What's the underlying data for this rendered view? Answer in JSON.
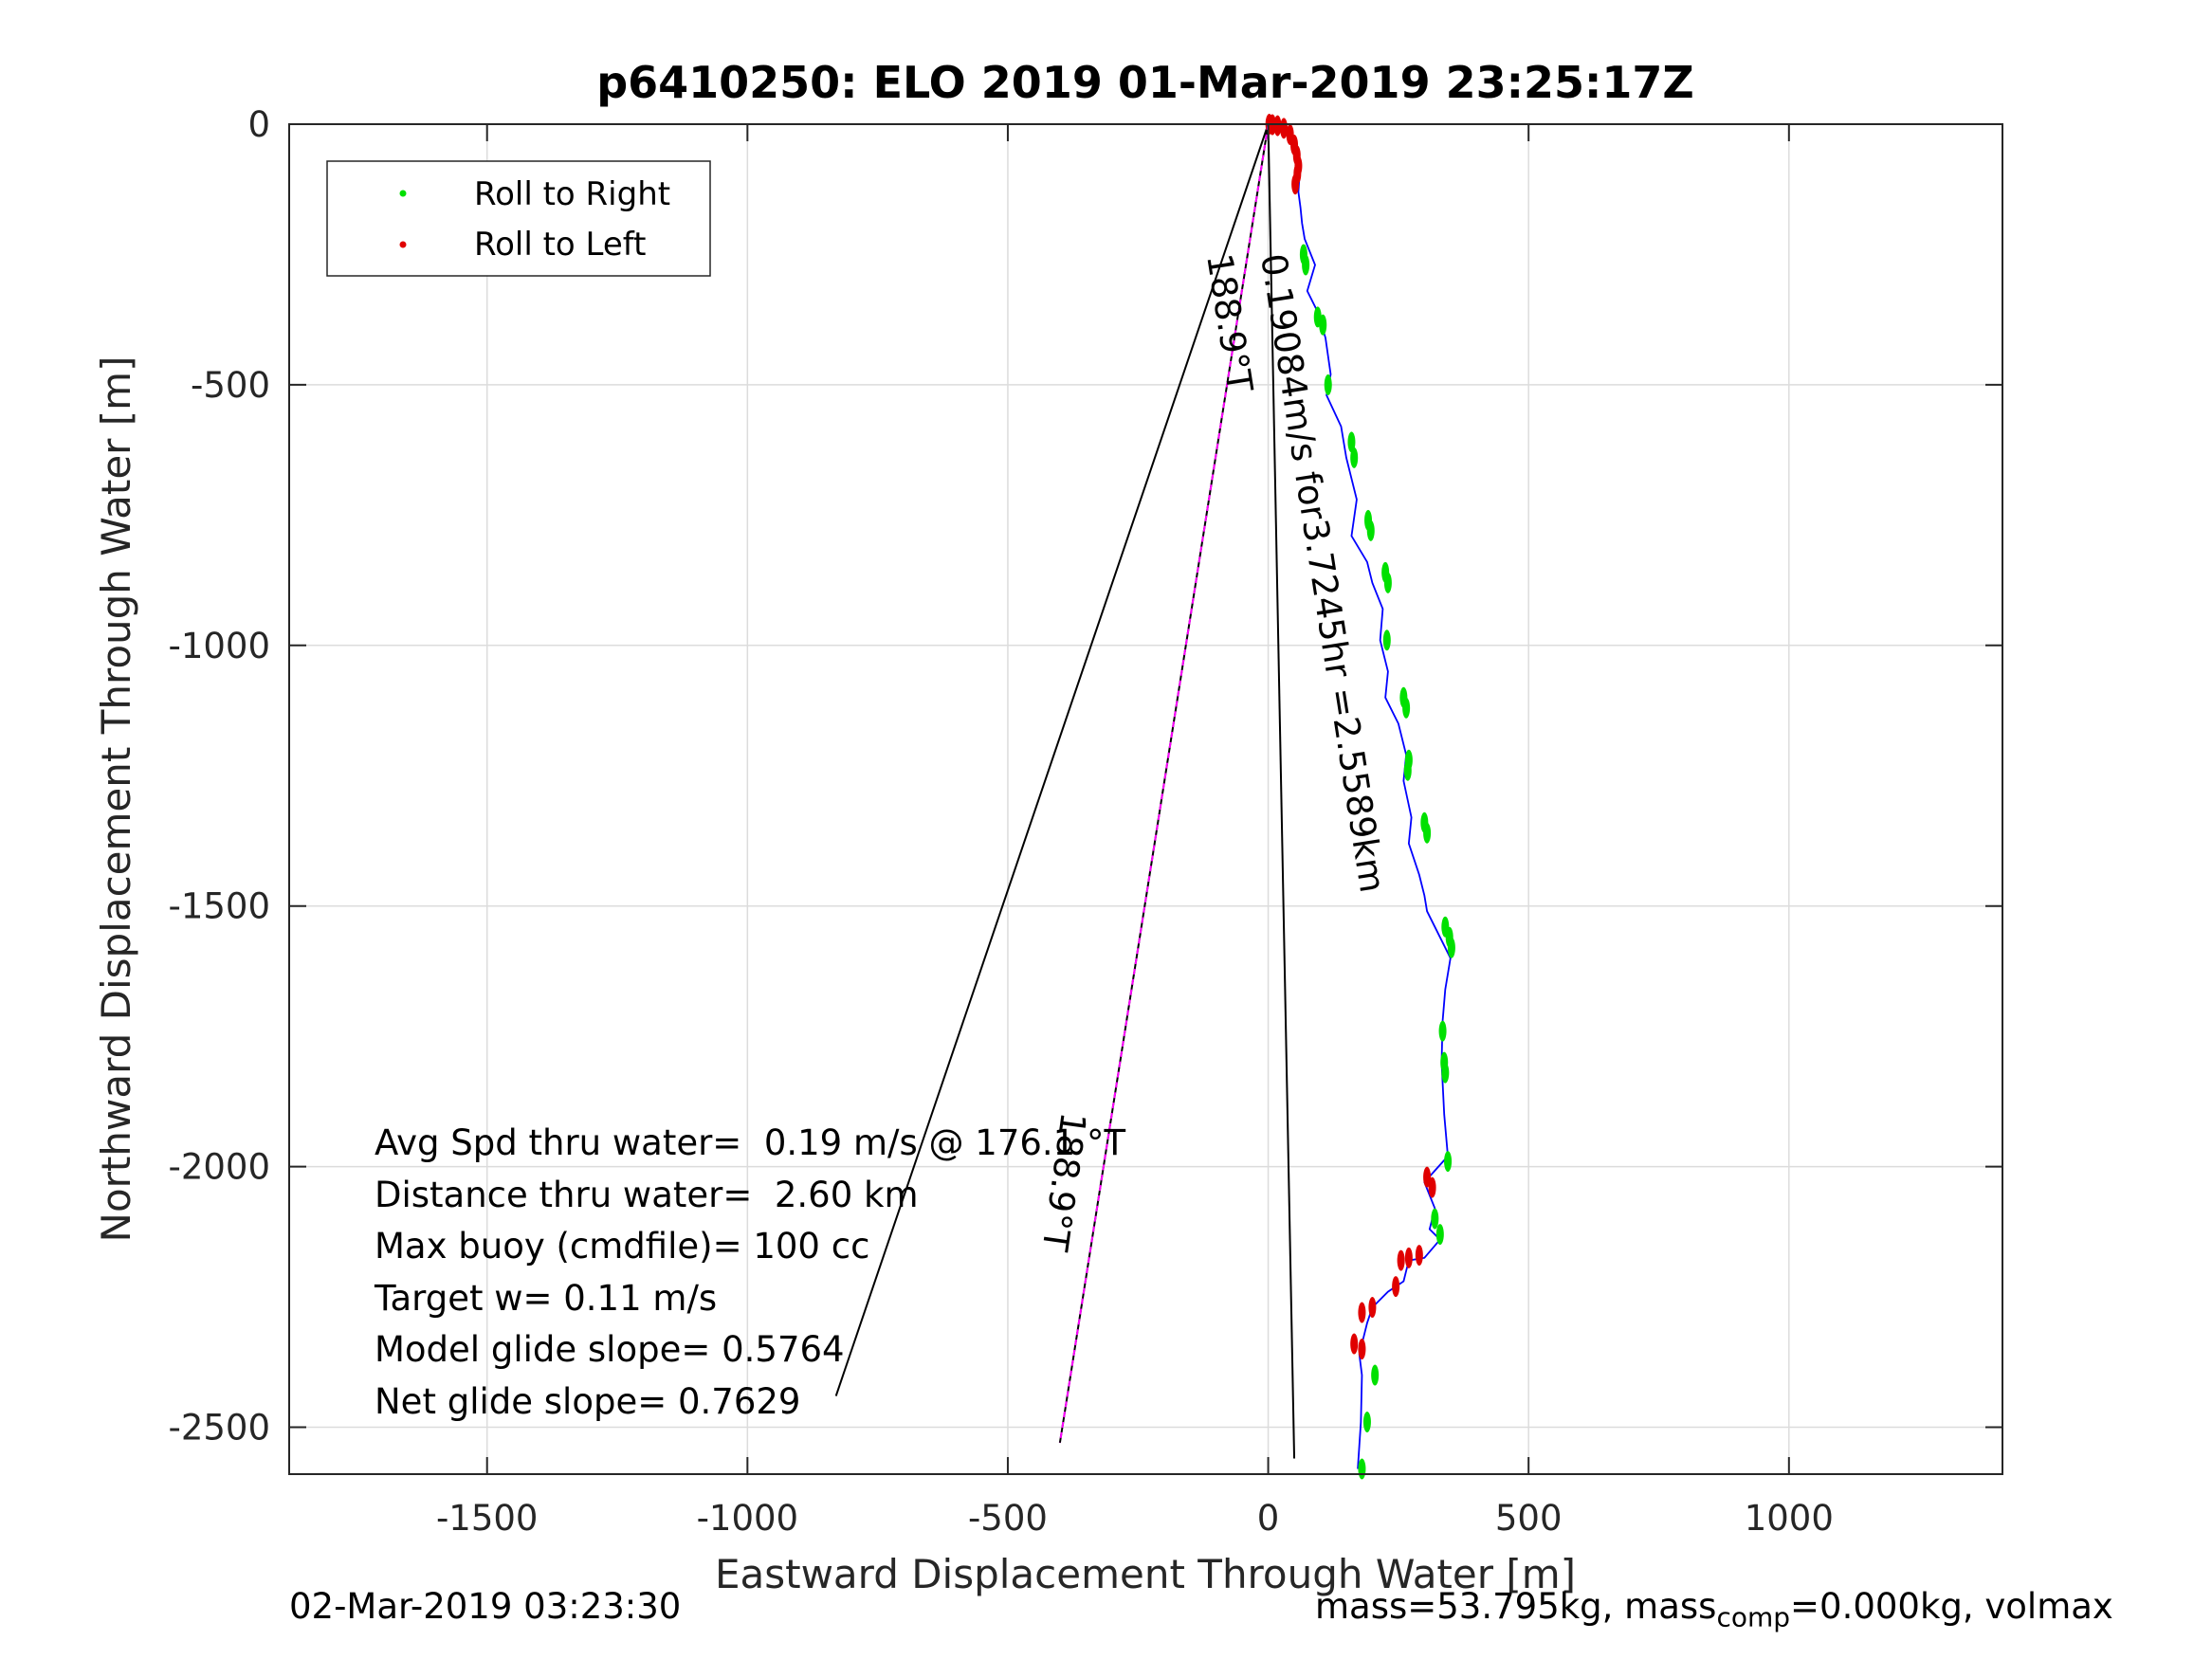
{
  "chart_data": {
    "type": "scatter",
    "title": "p6410250: ELO 2019 01-Mar-2019 23:25:17Z",
    "xlabel": "Eastward Displacement Through Water [m]",
    "ylabel": "Northward Displacement Through Water [m]",
    "xlim": [
      -1880,
      1410
    ],
    "ylim": [
      -2590,
      0
    ],
    "xticks": [
      -1500,
      -1000,
      -500,
      0,
      500,
      1000
    ],
    "yticks": [
      0,
      -500,
      -1000,
      -1500,
      -2000,
      -2500
    ],
    "grid": true,
    "legend": {
      "placement": "top-left",
      "entries": [
        {
          "name": "Roll to Right",
          "color": "#00e000"
        },
        {
          "name": "Roll to Left",
          "color": "#e00000"
        }
      ]
    },
    "series": [
      {
        "style": "track-line",
        "color": "#0000ff",
        "x": [
          5,
          15,
          30,
          45,
          55,
          60,
          58,
          62,
          65,
          70,
          90,
          75,
          95,
          110,
          120,
          112,
          140,
          150,
          170,
          160,
          190,
          200,
          220,
          215,
          230,
          225,
          250,
          265,
          260,
          275,
          270,
          290,
          300,
          305,
          330,
          350,
          340,
          335,
          333,
          338,
          345,
          300,
          320,
          310,
          330,
          300,
          270,
          260,
          230,
          200,
          190,
          175,
          180,
          178,
          172
        ],
        "y": [
          0,
          -2,
          -10,
          -30,
          -60,
          -100,
          -130,
          -160,
          -190,
          -220,
          -270,
          -320,
          -360,
          -410,
          -480,
          -520,
          -580,
          -640,
          -720,
          -790,
          -840,
          -880,
          -930,
          -990,
          -1050,
          -1100,
          -1150,
          -1210,
          -1260,
          -1330,
          -1380,
          -1440,
          -1480,
          -1510,
          -1560,
          -1600,
          -1660,
          -1720,
          -1800,
          -1900,
          -1980,
          -2030,
          -2080,
          -2120,
          -2140,
          -2175,
          -2180,
          -2220,
          -2240,
          -2270,
          -2300,
          -2360,
          -2400,
          -2490,
          -2580
        ]
      },
      {
        "name": "Roll to Right",
        "style": "dots",
        "color": "#00e000",
        "x": [
          68,
          72,
          95,
          105,
          115,
          160,
          165,
          192,
          197,
          225,
          230,
          228,
          260,
          265,
          270,
          268,
          300,
          305,
          340,
          348,
          352,
          335,
          338,
          340,
          345,
          320,
          330,
          205,
          190,
          180
        ],
        "y": [
          -250,
          -270,
          -370,
          -385,
          -500,
          -610,
          -640,
          -760,
          -780,
          -860,
          -880,
          -990,
          -1100,
          -1120,
          -1220,
          -1240,
          -1340,
          -1360,
          -1540,
          -1560,
          -1580,
          -1740,
          -1800,
          -1820,
          -1990,
          -2100,
          -2130,
          -2400,
          -2490,
          -2580
        ]
      },
      {
        "name": "Roll to Left",
        "style": "dots",
        "color": "#e00000",
        "x": [
          2,
          8,
          18,
          30,
          42,
          50,
          55,
          58,
          56,
          52,
          305,
          315,
          290,
          270,
          255,
          245,
          200,
          180,
          165,
          180
        ],
        "y": [
          0,
          -1,
          -3,
          -8,
          -20,
          -40,
          -60,
          -80,
          -95,
          -115,
          -2020,
          -2040,
          -2170,
          -2175,
          -2180,
          -2230,
          -2270,
          -2280,
          -2340,
          -2350
        ]
      },
      {
        "style": "dashed-heading-line",
        "color": "#ff00ff",
        "x": [
          0,
          -400
        ],
        "y": [
          0,
          -2530
        ]
      }
    ],
    "reference_lines": [
      {
        "x": [
          0,
          -830
        ],
        "y": [
          0,
          -2440
        ]
      },
      {
        "x": [
          0,
          50
        ],
        "y": [
          0,
          -2560
        ]
      }
    ],
    "annotations": {
      "heading_upper": "188.9°T",
      "speed_line": "0.19084m/s for3.7245hr =2.5589km",
      "heading_lower": "188.9°T",
      "stats": [
        "Avg Spd thru water=  0.19 m/s @ 176.1 °T",
        "Distance thru water=  2.60 km",
        "Max buoy (cmdfile)= 100 cc",
        "Target w= 0.11 m/s",
        "Model glide slope= 0.5764",
        "Net glide slope= 0.7629"
      ]
    }
  },
  "footer": {
    "timestamp": "02-Mar-2019 03:23:30",
    "mass_prefix": "mass=53.795kg, mass",
    "mass_subscript": "comp",
    "mass_suffix": "=0.000kg, volmax"
  }
}
